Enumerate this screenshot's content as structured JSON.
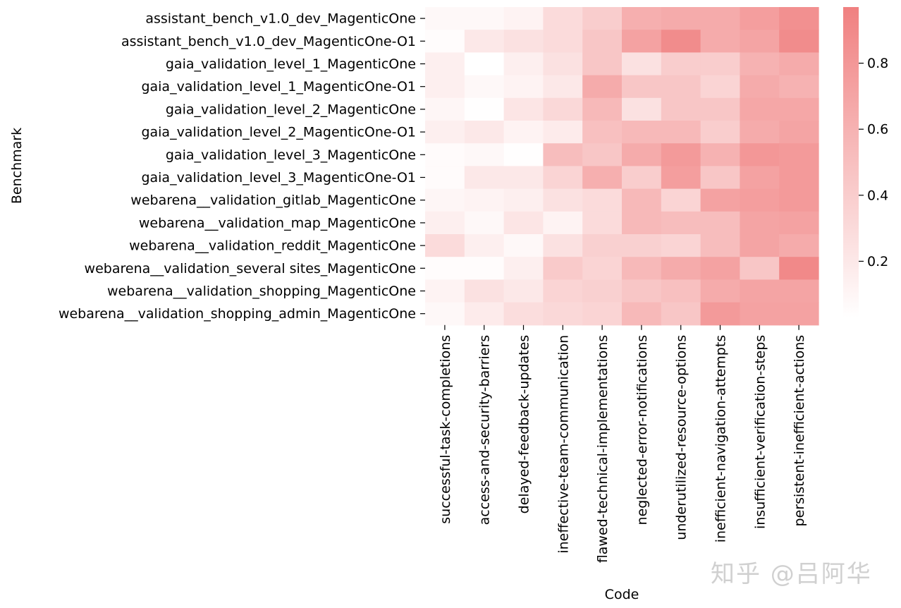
{
  "chart_data": {
    "type": "heatmap",
    "xlabel": "Code",
    "ylabel": "Benchmark",
    "columns": [
      "successful-task-completions",
      "access-and-security-barriers",
      "delayed-feedback-updates",
      "ineffective-team-communication",
      "flawed-technical-implementations",
      "neglected-error-notifications",
      "underutilized-resource-options",
      "inefficient-navigation-attempts",
      "insufficient-verification-steps",
      "persistent-inefficient-actions"
    ],
    "rows": [
      "assistant_bench_v1.0_dev_MagenticOne",
      "assistant_bench_v1.0_dev_MagenticOne-O1",
      "gaia_validation_level_1_MagenticOne",
      "gaia_validation_level_1_MagenticOne-O1",
      "gaia_validation_level_2_MagenticOne",
      "gaia_validation_level_2_MagenticOne-O1",
      "gaia_validation_level_3_MagenticOne",
      "gaia_validation_level_3_MagenticOne-O1",
      "webarena__validation_gitlab_MagenticOne",
      "webarena__validation_map_MagenticOne",
      "webarena__validation_reddit_MagenticOne",
      "webarena__validation_several sites_MagenticOne",
      "webarena__validation_shopping_MagenticOne",
      "webarena__validation_shopping_admin_MagenticOne"
    ],
    "values": [
      [
        0.08,
        0.08,
        0.12,
        0.3,
        0.4,
        0.62,
        0.65,
        0.65,
        0.75,
        0.85
      ],
      [
        0.05,
        0.2,
        0.25,
        0.3,
        0.45,
        0.72,
        0.88,
        0.65,
        0.7,
        0.88
      ],
      [
        0.15,
        0.03,
        0.15,
        0.25,
        0.45,
        0.25,
        0.4,
        0.4,
        0.6,
        0.65
      ],
      [
        0.15,
        0.08,
        0.12,
        0.2,
        0.65,
        0.45,
        0.45,
        0.35,
        0.65,
        0.6
      ],
      [
        0.1,
        0.04,
        0.22,
        0.32,
        0.55,
        0.25,
        0.45,
        0.45,
        0.68,
        0.68
      ],
      [
        0.15,
        0.2,
        0.12,
        0.18,
        0.5,
        0.55,
        0.55,
        0.4,
        0.65,
        0.7
      ],
      [
        0.06,
        0.08,
        0.04,
        0.52,
        0.45,
        0.65,
        0.78,
        0.6,
        0.8,
        0.78
      ],
      [
        0.06,
        0.2,
        0.2,
        0.35,
        0.62,
        0.4,
        0.75,
        0.45,
        0.72,
        0.78
      ],
      [
        0.1,
        0.12,
        0.15,
        0.25,
        0.3,
        0.55,
        0.35,
        0.72,
        0.75,
        0.78
      ],
      [
        0.15,
        0.08,
        0.22,
        0.12,
        0.3,
        0.55,
        0.52,
        0.52,
        0.7,
        0.72
      ],
      [
        0.3,
        0.15,
        0.08,
        0.25,
        0.38,
        0.38,
        0.35,
        0.52,
        0.7,
        0.65
      ],
      [
        0.05,
        0.05,
        0.15,
        0.42,
        0.35,
        0.55,
        0.65,
        0.72,
        0.45,
        0.9
      ],
      [
        0.12,
        0.25,
        0.2,
        0.35,
        0.38,
        0.45,
        0.5,
        0.65,
        0.7,
        0.7
      ],
      [
        0.08,
        0.18,
        0.28,
        0.32,
        0.35,
        0.55,
        0.45,
        0.78,
        0.72,
        0.72
      ]
    ],
    "colorbar": {
      "min": 0.03,
      "max": 0.97,
      "ticks": [
        0.2,
        0.4,
        0.6,
        0.8
      ],
      "tick_labels": [
        "0.2",
        "0.4",
        "0.6",
        "0.8"
      ],
      "low_color": "#ffffff",
      "high_color": "#f08080"
    }
  },
  "watermark": "知乎 @吕阿华"
}
